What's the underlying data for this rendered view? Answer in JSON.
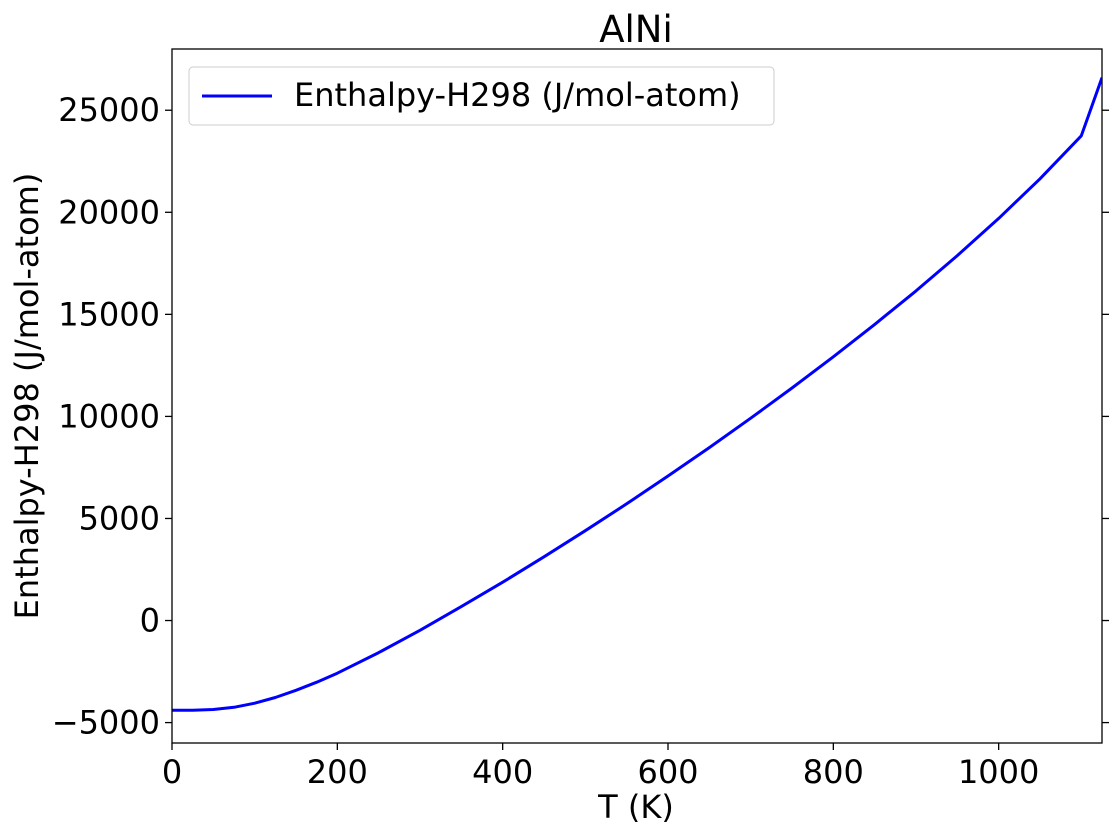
{
  "chart_data": {
    "type": "line",
    "title": "AlNi",
    "xlabel": "T (K)",
    "ylabel": "Enthalpy-H298 (J/mol-atom)",
    "xlim": [
      0,
      1125
    ],
    "ylim": [
      -6000,
      28000
    ],
    "xticks": [
      0,
      200,
      400,
      600,
      800,
      1000
    ],
    "xtick_labels": [
      "0",
      "200",
      "400",
      "600",
      "800",
      "1000"
    ],
    "yticks": [
      -5000,
      0,
      5000,
      10000,
      15000,
      20000,
      25000
    ],
    "ytick_labels": [
      "−5000",
      "0",
      "5000",
      "10000",
      "15000",
      "20000",
      "25000"
    ],
    "grid": false,
    "legend_position": "top-left",
    "series": [
      {
        "name": "Enthalpy-H298 (J/mol-atom)",
        "color": "#0000ff",
        "x": [
          0,
          25,
          50,
          75,
          100,
          125,
          150,
          175,
          200,
          250,
          300,
          350,
          400,
          450,
          500,
          550,
          600,
          650,
          700,
          750,
          800,
          850,
          900,
          950,
          1000,
          1050,
          1100,
          1125
        ],
        "y": [
          -4400,
          -4400,
          -4360,
          -4250,
          -4050,
          -3770,
          -3420,
          -3020,
          -2580,
          -1570,
          -480,
          680,
          1880,
          3120,
          4400,
          5720,
          7080,
          8470,
          9910,
          11390,
          12920,
          14510,
          16150,
          17880,
          19700,
          21640,
          23750,
          26600
        ]
      }
    ]
  }
}
